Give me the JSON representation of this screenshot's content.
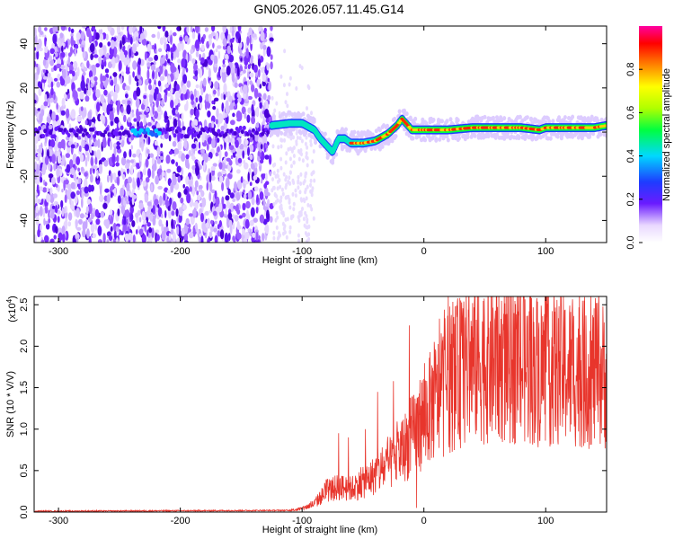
{
  "title": "GN05.2026.057.11.45.G14",
  "chart_data": [
    {
      "type": "heatmap",
      "xlabel": "Height of straight line (km)",
      "ylabel": "Frequency (Hz)",
      "xlim": [
        -320,
        150
      ],
      "ylim": [
        -50,
        48
      ],
      "xticks": [
        -300,
        -200,
        -100,
        0,
        100
      ],
      "yticks": [
        -40,
        -20,
        0,
        20,
        40
      ],
      "noise_region": [
        -320,
        -125
      ],
      "transition_region": [
        -125,
        -90
      ],
      "ridge": {
        "x": [
          -125,
          -110,
          -100,
          -90,
          -85,
          -80,
          -75,
          -70,
          -65,
          -60,
          -50,
          -40,
          -30,
          -22,
          -18,
          -10,
          0,
          20,
          40,
          60,
          80,
          95,
          100,
          120,
          140,
          150
        ],
        "y": [
          3,
          4,
          4,
          1,
          -3,
          -6,
          -9,
          -3,
          -3,
          -5,
          -5,
          -4,
          -1,
          3,
          6,
          1,
          1,
          1,
          2,
          2,
          2,
          1,
          2,
          2,
          2,
          3
        ]
      },
      "colorbar": {
        "label": "Normalized spectral amplitude",
        "range": [
          0,
          1
        ],
        "ticks": [
          "0.0",
          "0.2",
          "0.4",
          "0.6",
          "0.8"
        ]
      }
    },
    {
      "type": "line",
      "xlabel": "Height of straight line (km)",
      "ylabel": "SNR (10 * V/V)",
      "scale_label": "(x10",
      "scale_exponent": "4",
      "scale_suffix": ")",
      "xlim": [
        -320,
        150
      ],
      "ylim": [
        0,
        2.6
      ],
      "xticks": [
        -300,
        -200,
        -100,
        0,
        100
      ],
      "yticks": [
        "0.0",
        "0.5",
        "1.0",
        "1.5",
        "2.0",
        "2.5"
      ],
      "series": [
        {
          "name": "SNR",
          "color": "#e8352c",
          "envelope_x": [
            -320,
            -110,
            -100,
            -90,
            -80,
            -70,
            -60,
            -50,
            -40,
            -30,
            -20,
            -10,
            0,
            10,
            20,
            30,
            40,
            60,
            80,
            100,
            120,
            150
          ],
          "envelope_y": [
            0.01,
            0.02,
            0.04,
            0.1,
            0.25,
            0.3,
            0.28,
            0.35,
            0.45,
            0.55,
            0.7,
            0.9,
            1.15,
            1.35,
            1.55,
            1.7,
            1.8,
            1.8,
            1.75,
            1.72,
            1.7,
            1.65
          ],
          "spikes_x": [
            -70,
            -62,
            -48,
            -38,
            -25,
            -12,
            -6,
            20,
            27,
            33,
            48,
            64,
            74,
            100
          ],
          "spikes_y": [
            0.95,
            0.9,
            1.0,
            1.45,
            1.58,
            2.25,
            0.05,
            2.6,
            2.35,
            2.25,
            2.3,
            2.15,
            2.4,
            2.5
          ]
        }
      ]
    }
  ]
}
